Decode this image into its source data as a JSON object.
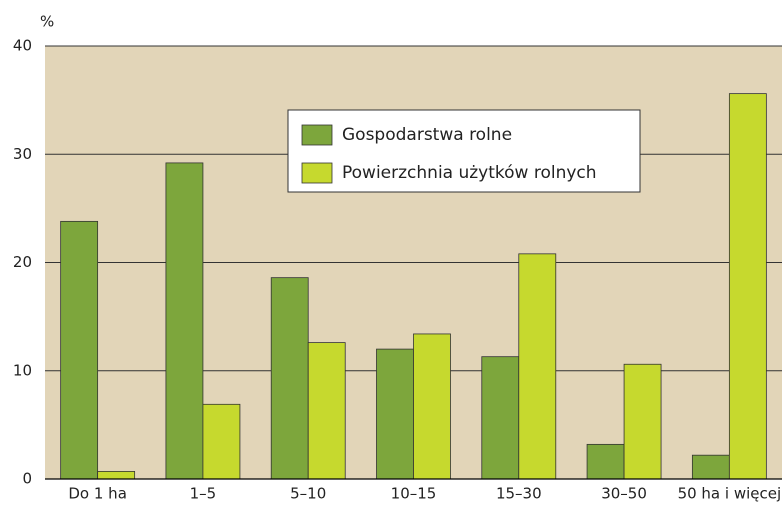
{
  "chart_data": {
    "type": "bar",
    "y_label": "%",
    "categories": [
      "Do 1 ha",
      "1–5",
      "5–10",
      "10–15",
      "15–30",
      "30–50",
      "50 ha i więcej"
    ],
    "series": [
      {
        "name": "Gospodarstwa rolne",
        "color": "#7da63c",
        "values": [
          23.8,
          29.2,
          18.6,
          12.0,
          11.3,
          3.2,
          2.2
        ]
      },
      {
        "name": "Powierzchnia użytków rolnych",
        "color": "#c6d92e",
        "values": [
          0.7,
          6.9,
          12.6,
          13.4,
          20.8,
          10.6,
          35.6
        ]
      }
    ],
    "ylim": [
      0,
      40
    ],
    "yticks": [
      0,
      10,
      20,
      30,
      40
    ],
    "grid": true,
    "background": "#e2d5b8"
  }
}
